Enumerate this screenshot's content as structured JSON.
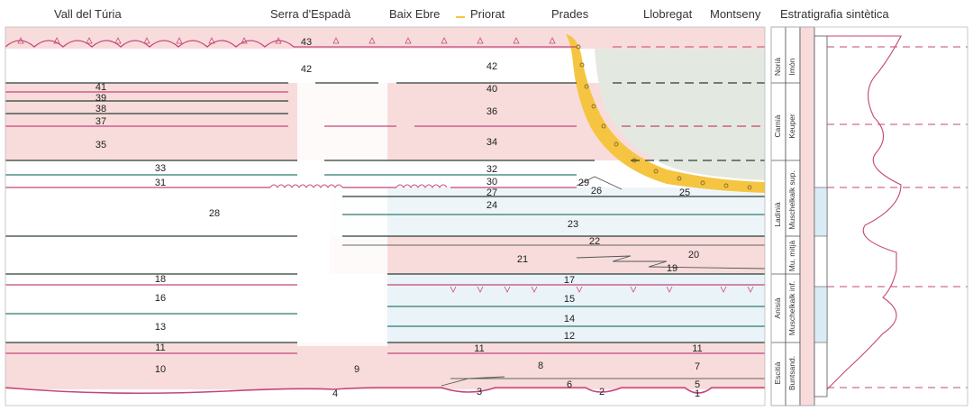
{
  "header": {
    "regions": [
      "Vall del Túria",
      "Serra d'Espadà",
      "Baix Ebre",
      "Priorat",
      "Prades",
      "Llobregat",
      "Montseny"
    ],
    "synthetic_title": "Estratigrafia sintètica"
  },
  "units": [
    "1",
    "2",
    "3",
    "4",
    "5",
    "6",
    "7",
    "8",
    "9",
    "10",
    "11",
    "11",
    "11",
    "12",
    "13",
    "14",
    "15",
    "16",
    "17",
    "18",
    "19",
    "20",
    "21",
    "22",
    "23",
    "24",
    "25",
    "26",
    "27",
    "28",
    "29",
    "30",
    "31",
    "32",
    "33",
    "34",
    "35",
    "36",
    "37",
    "38",
    "39",
    "40",
    "41",
    "42",
    "42",
    "43"
  ],
  "column": {
    "stages": [
      "Norià",
      "Carnià",
      "Ladinià",
      "Anisià",
      "Escitià"
    ],
    "formations": [
      "Imón",
      "Keuper",
      "Muschelkalk sup.",
      "Mu. mitjà",
      "Muschelkalk inf.",
      "Buntsand."
    ]
  },
  "colors": {
    "pink": "#f8dcdc",
    "blue": "#e6f1f7",
    "green_fill": "#e3e9e1",
    "yellow": "#f5c542",
    "red_line": "#c4467a",
    "teal_line": "#2f7a70",
    "dark_line": "#2b3d35"
  }
}
